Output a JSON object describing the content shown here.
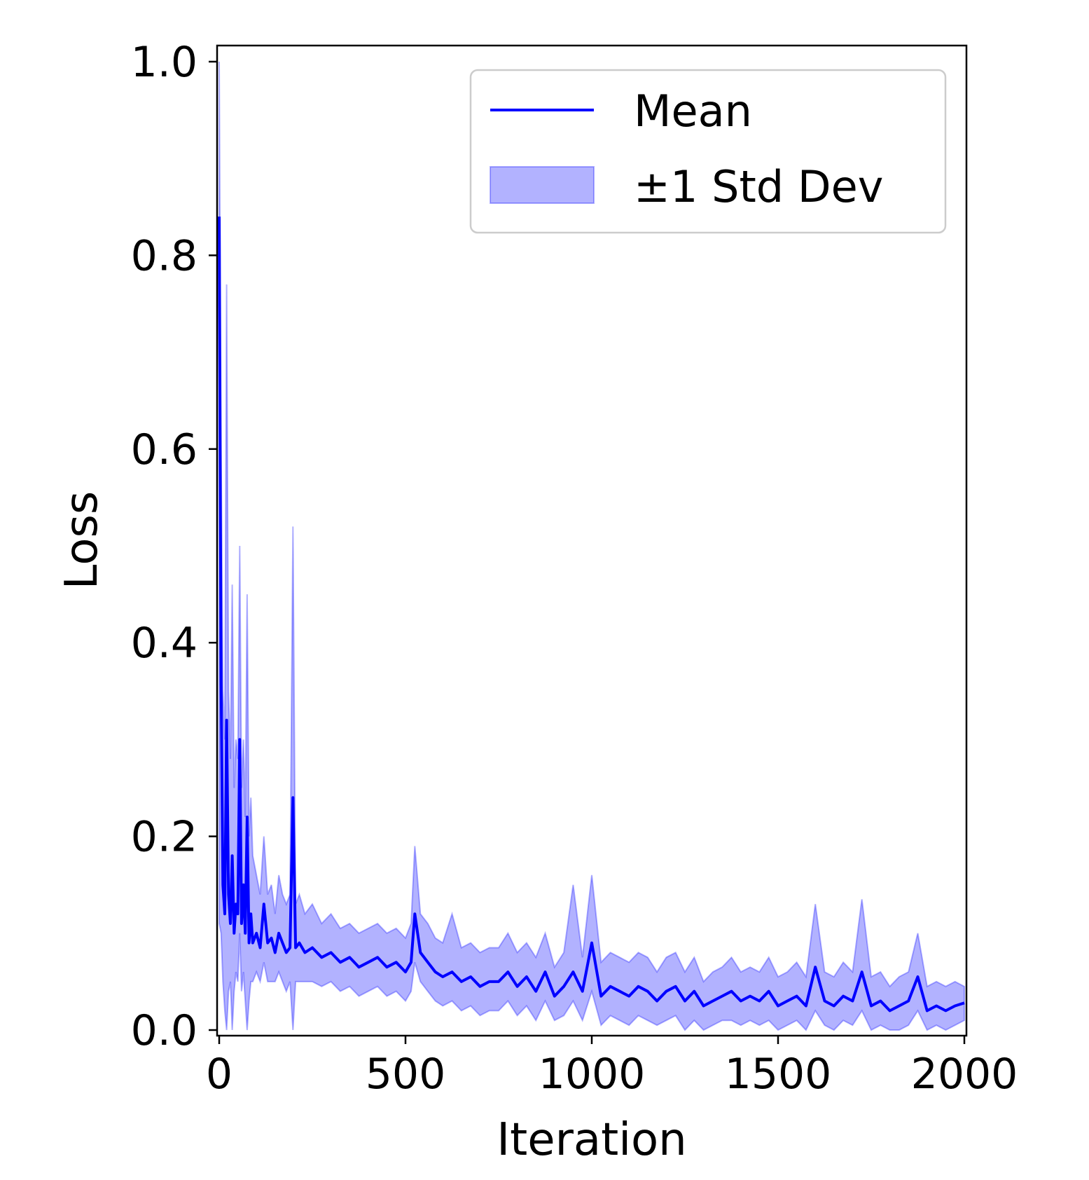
{
  "colors": {
    "mean_line": "#0000ff",
    "band_fill": "#0000ff",
    "band_opacity": 0.3,
    "axis": "#000000",
    "legend_border": "#cccccc"
  },
  "chart_data": {
    "type": "line",
    "title": "",
    "xlabel": "Iteration",
    "ylabel": "Loss",
    "xlim": [
      0,
      2000
    ],
    "ylim": [
      0.0,
      1.0
    ],
    "xticks": [
      "0",
      "500",
      "1000",
      "1500",
      "2000"
    ],
    "yticks": [
      "0.0",
      "0.2",
      "0.4",
      "0.6",
      "0.8",
      "1.0"
    ],
    "grid": false,
    "legend": {
      "placement": "top-right",
      "entries": [
        "Mean",
        "±1 Std Dev"
      ]
    },
    "series": [
      {
        "name": "Mean",
        "x": [
          0,
          5,
          10,
          15,
          20,
          25,
          30,
          35,
          40,
          45,
          50,
          55,
          60,
          65,
          70,
          75,
          80,
          85,
          90,
          100,
          110,
          120,
          130,
          140,
          150,
          160,
          170,
          180,
          190,
          198,
          205,
          215,
          230,
          250,
          275,
          300,
          325,
          350,
          375,
          400,
          425,
          450,
          475,
          500,
          515,
          525,
          540,
          560,
          580,
          600,
          625,
          650,
          675,
          700,
          725,
          750,
          775,
          800,
          825,
          850,
          875,
          900,
          925,
          950,
          975,
          1000,
          1025,
          1050,
          1075,
          1100,
          1125,
          1150,
          1175,
          1200,
          1225,
          1250,
          1275,
          1300,
          1325,
          1350,
          1375,
          1400,
          1425,
          1450,
          1475,
          1500,
          1525,
          1550,
          1575,
          1600,
          1625,
          1650,
          1675,
          1700,
          1725,
          1750,
          1775,
          1800,
          1825,
          1850,
          1875,
          1900,
          1925,
          1950,
          1975,
          2000
        ],
        "values": [
          0.84,
          0.36,
          0.15,
          0.12,
          0.32,
          0.14,
          0.11,
          0.18,
          0.1,
          0.13,
          0.12,
          0.3,
          0.11,
          0.15,
          0.1,
          0.22,
          0.09,
          0.12,
          0.09,
          0.1,
          0.085,
          0.13,
          0.09,
          0.095,
          0.08,
          0.1,
          0.09,
          0.08,
          0.085,
          0.24,
          0.085,
          0.09,
          0.08,
          0.085,
          0.075,
          0.08,
          0.07,
          0.075,
          0.065,
          0.07,
          0.075,
          0.065,
          0.07,
          0.06,
          0.07,
          0.12,
          0.08,
          0.07,
          0.06,
          0.055,
          0.06,
          0.05,
          0.055,
          0.045,
          0.05,
          0.05,
          0.06,
          0.045,
          0.055,
          0.04,
          0.06,
          0.035,
          0.045,
          0.06,
          0.04,
          0.09,
          0.035,
          0.045,
          0.04,
          0.035,
          0.045,
          0.04,
          0.03,
          0.04,
          0.045,
          0.03,
          0.04,
          0.025,
          0.03,
          0.035,
          0.04,
          0.03,
          0.035,
          0.03,
          0.04,
          0.025,
          0.03,
          0.035,
          0.025,
          0.065,
          0.03,
          0.025,
          0.035,
          0.03,
          0.06,
          0.025,
          0.03,
          0.02,
          0.025,
          0.03,
          0.055,
          0.02,
          0.025,
          0.02,
          0.025,
          0.028
        ]
      },
      {
        "name": "±1 Std Dev",
        "x": [
          0,
          5,
          10,
          15,
          20,
          25,
          30,
          35,
          40,
          45,
          50,
          55,
          60,
          65,
          70,
          75,
          80,
          85,
          90,
          100,
          110,
          120,
          130,
          140,
          150,
          160,
          170,
          180,
          190,
          198,
          205,
          215,
          230,
          250,
          275,
          300,
          325,
          350,
          375,
          400,
          425,
          450,
          475,
          500,
          515,
          525,
          540,
          560,
          580,
          600,
          625,
          650,
          675,
          700,
          725,
          750,
          775,
          800,
          825,
          850,
          875,
          900,
          925,
          950,
          975,
          1000,
          1025,
          1050,
          1075,
          1100,
          1125,
          1150,
          1175,
          1200,
          1225,
          1250,
          1275,
          1300,
          1325,
          1350,
          1375,
          1400,
          1425,
          1450,
          1475,
          1500,
          1525,
          1550,
          1575,
          1600,
          1625,
          1650,
          1675,
          1700,
          1725,
          1750,
          1775,
          1800,
          1825,
          1850,
          1875,
          1900,
          1925,
          1950,
          1975,
          2000
        ],
        "upper": [
          1.0,
          0.6,
          0.35,
          0.3,
          0.77,
          0.35,
          0.28,
          0.46,
          0.25,
          0.3,
          0.28,
          0.5,
          0.25,
          0.3,
          0.22,
          0.45,
          0.2,
          0.24,
          0.18,
          0.16,
          0.14,
          0.2,
          0.14,
          0.15,
          0.12,
          0.16,
          0.14,
          0.13,
          0.14,
          0.52,
          0.13,
          0.14,
          0.12,
          0.13,
          0.11,
          0.12,
          0.105,
          0.11,
          0.1,
          0.105,
          0.11,
          0.1,
          0.105,
          0.095,
          0.11,
          0.19,
          0.12,
          0.11,
          0.095,
          0.09,
          0.12,
          0.085,
          0.09,
          0.08,
          0.085,
          0.085,
          0.1,
          0.08,
          0.09,
          0.075,
          0.1,
          0.065,
          0.08,
          0.15,
          0.075,
          0.16,
          0.07,
          0.08,
          0.075,
          0.07,
          0.08,
          0.075,
          0.06,
          0.075,
          0.08,
          0.06,
          0.075,
          0.05,
          0.06,
          0.065,
          0.075,
          0.06,
          0.065,
          0.06,
          0.075,
          0.055,
          0.06,
          0.07,
          0.055,
          0.13,
          0.06,
          0.055,
          0.07,
          0.06,
          0.135,
          0.055,
          0.06,
          0.045,
          0.055,
          0.06,
          0.1,
          0.045,
          0.05,
          0.045,
          0.05,
          0.045
        ],
        "lower": [
          0.11,
          0.1,
          0.05,
          0.02,
          0.0,
          0.04,
          0.05,
          0.0,
          0.04,
          0.06,
          0.05,
          0.1,
          0.04,
          0.06,
          0.03,
          0.0,
          0.03,
          0.05,
          0.05,
          0.06,
          0.05,
          0.07,
          0.05,
          0.05,
          0.05,
          0.06,
          0.05,
          0.04,
          0.05,
          0.0,
          0.05,
          0.05,
          0.05,
          0.05,
          0.045,
          0.05,
          0.04,
          0.045,
          0.035,
          0.04,
          0.045,
          0.035,
          0.04,
          0.03,
          0.04,
          0.07,
          0.05,
          0.04,
          0.03,
          0.025,
          0.03,
          0.02,
          0.025,
          0.015,
          0.02,
          0.02,
          0.03,
          0.015,
          0.025,
          0.01,
          0.03,
          0.01,
          0.015,
          0.03,
          0.01,
          0.04,
          0.005,
          0.015,
          0.01,
          0.005,
          0.015,
          0.01,
          0.005,
          0.01,
          0.015,
          0.0,
          0.01,
          0.0,
          0.005,
          0.01,
          0.01,
          0.005,
          0.01,
          0.005,
          0.01,
          0.0,
          0.005,
          0.01,
          0.0,
          0.02,
          0.005,
          0.0,
          0.01,
          0.005,
          0.02,
          0.0,
          0.005,
          0.0,
          0.0,
          0.005,
          0.02,
          0.0,
          0.005,
          0.0,
          0.005,
          0.01
        ]
      }
    ]
  }
}
